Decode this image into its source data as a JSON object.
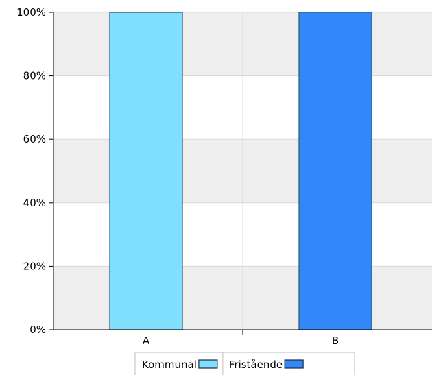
{
  "chart_data": {
    "type": "bar",
    "categories": [
      "A",
      "B"
    ],
    "series": [
      {
        "name": "Kommunal",
        "values": [
          100,
          0
        ],
        "color": "#7FDFFC"
      },
      {
        "name": "Fristående",
        "values": [
          0,
          100
        ],
        "color": "#3388F9"
      }
    ],
    "ylim": [
      0,
      100
    ],
    "yticks": [
      "0%",
      "20%",
      "40%",
      "60%",
      "80%",
      "100%"
    ],
    "grid": true,
    "band_colors": [
      "#EEEEEE",
      "#FFFFFF"
    ],
    "legend_position": "bottom-center"
  }
}
